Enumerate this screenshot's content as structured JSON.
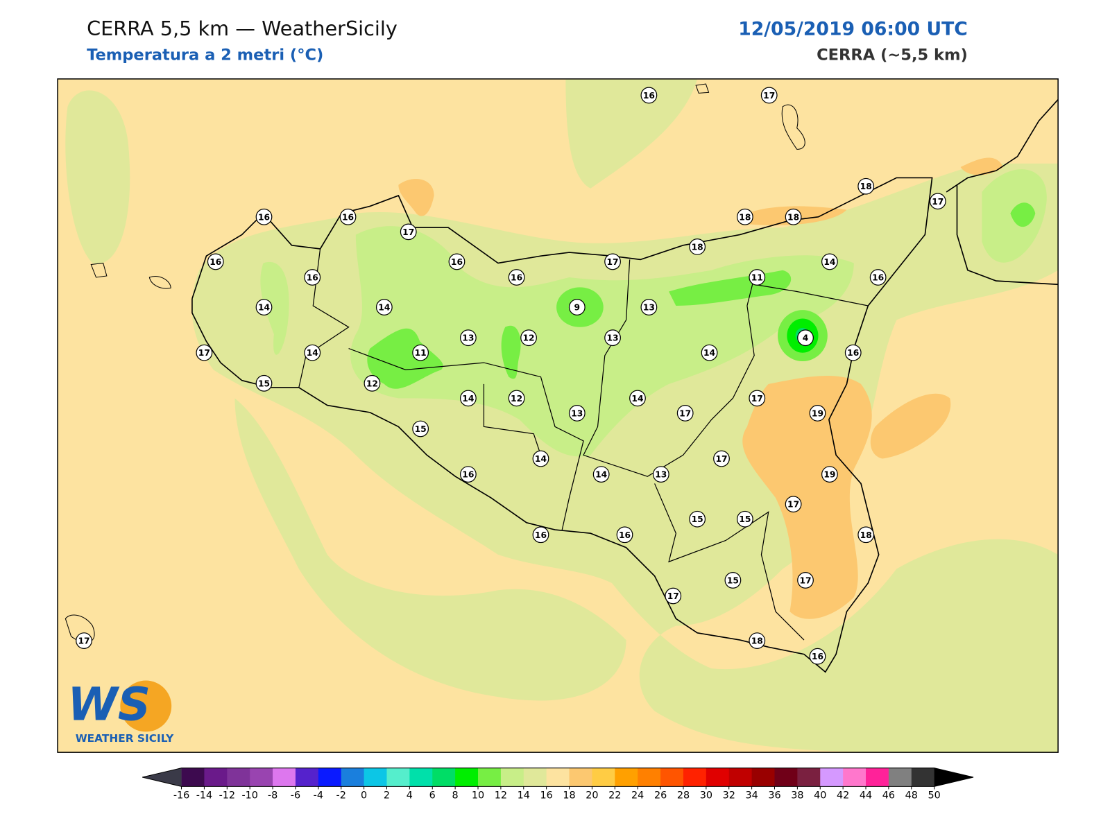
{
  "header": {
    "title": "CERRA 5,5 km — WeatherSicily",
    "subtitle": "Temperatura a 2 metri (°C)",
    "datetime": "12/05/2019 06:00 UTC",
    "model": "CERRA (~5,5 km)"
  },
  "stations": [
    16,
    17,
    18,
    17,
    16,
    16,
    17,
    18,
    18,
    16,
    16,
    16,
    17,
    18,
    14,
    16,
    16,
    14,
    14,
    9,
    13,
    11,
    4,
    13,
    12,
    13,
    11,
    14,
    17,
    14,
    16,
    15,
    12,
    14,
    12,
    13,
    14,
    17,
    17,
    19,
    15,
    14,
    17,
    14,
    13,
    16,
    19,
    17,
    15,
    15,
    16,
    16,
    18,
    15,
    17,
    17,
    18,
    17,
    16
  ],
  "colorbar": {
    "ticks": [
      -16,
      -14,
      -12,
      -10,
      -8,
      -6,
      -4,
      -2,
      0,
      2,
      4,
      6,
      8,
      10,
      12,
      14,
      16,
      18,
      20,
      22,
      24,
      26,
      28,
      30,
      32,
      34,
      36,
      38,
      40,
      42,
      44,
      46,
      48,
      50
    ],
    "colors": [
      "#3d0a4f",
      "#6a1a8a",
      "#7f3399",
      "#9944b0",
      "#dd77ee",
      "#5522cc",
      "#0a1aff",
      "#1a7fdd",
      "#0cc6e6",
      "#55eecc",
      "#00e0aa",
      "#00dd66",
      "#00ee00",
      "#77ee44",
      "#c8ee88",
      "#e0e89a",
      "#fde3a0",
      "#fcc870",
      "#ffcc44",
      "#ffa000",
      "#ff8000",
      "#ff5500",
      "#ff2200",
      "#e00000",
      "#c00000",
      "#990000",
      "#700018",
      "#7a2040",
      "#d599ff",
      "#ff77cc",
      "#ff2299",
      "#808080",
      "#333333"
    ],
    "under_color": "#3a3a48",
    "over_color": "#000000"
  },
  "logo": {
    "initials": "WS",
    "name": "WEATHER SICILY"
  }
}
